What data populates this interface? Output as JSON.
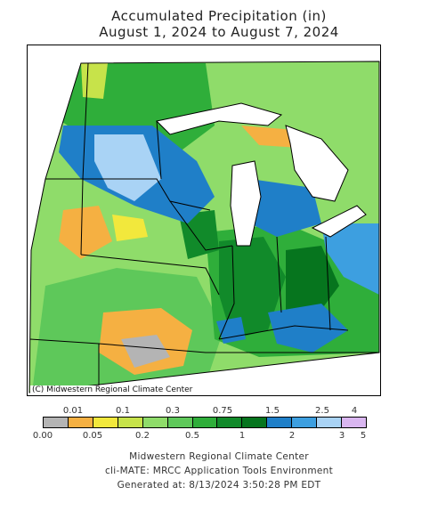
{
  "title": {
    "line1": "Accumulated Precipitation (in)",
    "line2": "August 1, 2024 to August 7, 2024"
  },
  "map": {
    "copyright": "(C) Midwestern Regional Climate Center",
    "colors": {
      "gray": "#b4b4b4",
      "orange": "#f5b042",
      "yellow": "#f2e83c",
      "yellow_green": "#c7e34a",
      "light_green": "#8fdc6a",
      "med_green": "#5ec85a",
      "green": "#2fae3a",
      "dark_green": "#118a2a",
      "darker_green": "#06751e",
      "blue": "#1f7fc8",
      "med_blue": "#3d9fe0",
      "light_blue": "#a9d3f5",
      "lavender": "#d9b6f0",
      "water": "#ffffff",
      "border": "#000000"
    }
  },
  "legend": {
    "top_labels": [
      "0.01",
      "0.1",
      "0.3",
      "0.75",
      "1.5",
      "2.5",
      "4"
    ],
    "bottom_labels": [
      "0.00",
      "0.05",
      "0.2",
      "0.5",
      "1",
      "2",
      "3",
      "5"
    ],
    "colors": [
      "#b4b4b4",
      "#f5b042",
      "#f2e83c",
      "#c7e34a",
      "#8fdc6a",
      "#5ec85a",
      "#2fae3a",
      "#118a2a",
      "#06751e",
      "#1f7fc8",
      "#3d9fe0",
      "#a9d3f5",
      "#d9b6f0"
    ]
  },
  "footer": {
    "line1": "Midwestern Regional Climate Center",
    "line2": "cli-MATE: MRCC Application Tools Environment",
    "line3": "Generated at: 8/13/2024 3:50:28 PM EDT"
  }
}
